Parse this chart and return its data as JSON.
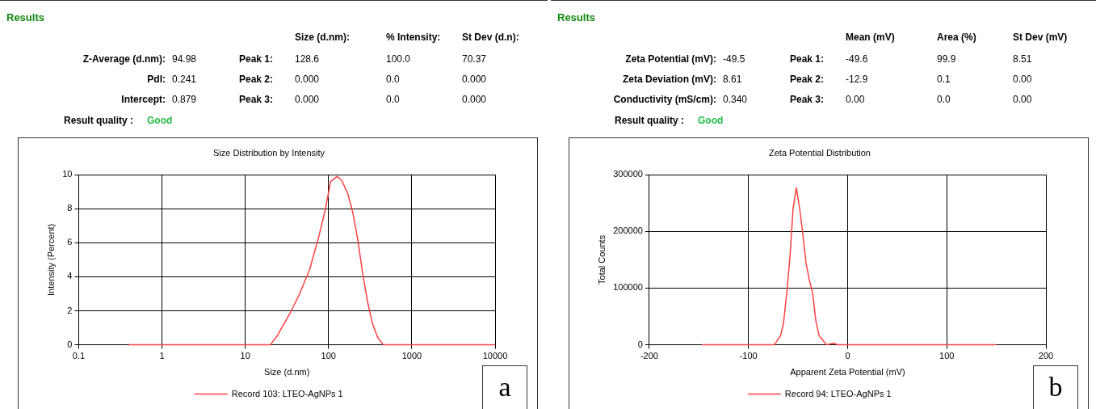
{
  "chart_data": [
    {
      "type": "other",
      "title": "Results",
      "annotations": [
        "Size (d.nm):",
        "% Intensity:",
        "St Dev (d.n):",
        "Z-Average (d.nm):",
        "94.98",
        "Peak 1:",
        "128.6",
        "100.0",
        "70.37",
        "PdI:",
        "0.241",
        "Peak 2:",
        "0.000",
        "0.0",
        "0.000",
        "Intercept:",
        "0.879",
        "Peak 3:",
        "0.000",
        "0.0",
        "0.000",
        "Result quality :",
        "Good"
      ]
    },
    {
      "type": "line",
      "title": "Size Distribution by Intensity",
      "xlabel": "Size (d.nm)",
      "ylabel": "Intensity (Percent)",
      "log": "x",
      "x": [
        0.4,
        20,
        24,
        34,
        45,
        59,
        75,
        91,
        106,
        126,
        143,
        170,
        195,
        224,
        257,
        295,
        339,
        392,
        455,
        10000
      ],
      "series": [
        {
          "name": "Record 103: LTEO-AgNPs 1",
          "color": "#ff4040",
          "values": [
            0,
            0,
            0.5,
            1.8,
            3.0,
            4.4,
            6.2,
            7.9,
            9.6,
            9.9,
            9.7,
            8.9,
            7.8,
            6.2,
            4.2,
            2.5,
            1.2,
            0.4,
            0,
            0
          ]
        }
      ],
      "xlim": [
        0.1,
        10000
      ],
      "xticks": [
        0.1,
        1,
        10,
        100,
        1000,
        10000
      ],
      "ylim": [
        0,
        10
      ],
      "yticks": [
        0,
        2,
        4,
        6,
        8,
        10
      ],
      "grid": true,
      "legend": "bottom",
      "annotations": [
        "a"
      ]
    },
    {
      "type": "other",
      "title": "Results",
      "annotations": [
        "Mean (mV)",
        "Area (%)",
        "St Dev (mV)",
        "Zeta Potential (mV):",
        "-49.5",
        "Peak 1:",
        "-49.6",
        "99.9",
        "8.51",
        "Zeta Deviation (mV):",
        "8.61",
        "Peak 2:",
        "-12.9",
        "0.1",
        "0.00",
        "Conductivity (mS/cm):",
        "0.340",
        "Peak 3:",
        "0.00",
        "0.0",
        "0.00",
        "Result quality :",
        "Good"
      ]
    },
    {
      "type": "line",
      "title": "Zeta Potential Distribution",
      "xlabel": "Apparent Zeta Potential (mV)",
      "ylabel": "Total Counts",
      "x": [
        -147,
        -74,
        -67.6,
        -64.6,
        -61.3,
        -58,
        -55,
        -51.7,
        -48.3,
        -45.3,
        -42,
        -38.7,
        -35.3,
        -32,
        -28.7,
        -25.3,
        -21.3,
        -13.7,
        -10,
        150
      ],
      "series": [
        {
          "name": "Record 94: LTEO-AgNPs 1",
          "color": "#ff4040",
          "values": [
            0,
            0,
            16000,
            39000,
            92000,
            158000,
            240000,
            277000,
            240000,
            198000,
            145000,
            115000,
            92000,
            42000,
            16000,
            9000,
            0,
            3000,
            0,
            0
          ]
        }
      ],
      "xlim": [
        -200,
        200
      ],
      "xticks": [
        -200,
        -100,
        0,
        100,
        200
      ],
      "ylim": [
        0,
        300000
      ],
      "yticks": [
        0,
        100000,
        200000,
        300000
      ],
      "grid": true,
      "legend": "bottom",
      "annotations": [
        "b"
      ]
    }
  ]
}
